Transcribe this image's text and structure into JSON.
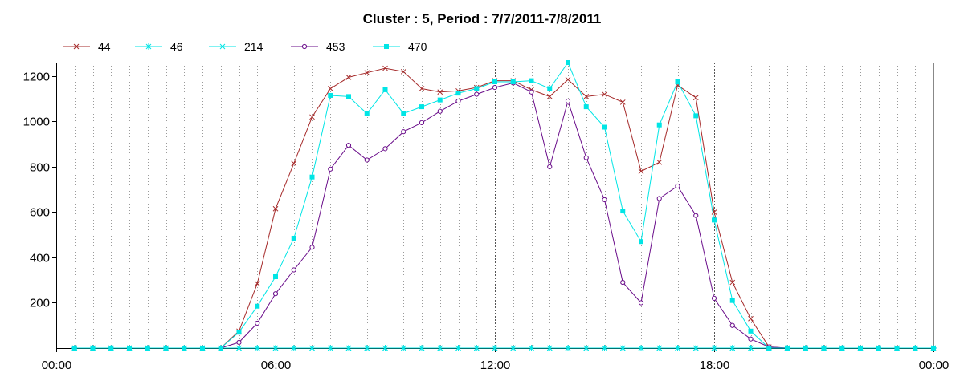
{
  "chart_data": {
    "type": "line",
    "title": "Cluster : 5, Period : 7/7/2011-7/8/2011",
    "xlabel": "",
    "ylabel": "",
    "x_unit": "hours",
    "xlim": [
      0,
      24
    ],
    "ylim": [
      0,
      1260
    ],
    "x_ticks": [
      {
        "value": 0,
        "label": "00:00"
      },
      {
        "value": 6,
        "label": "06:00"
      },
      {
        "value": 12,
        "label": "12:00"
      },
      {
        "value": 18,
        "label": "18:00"
      },
      {
        "value": 24,
        "label": "00:00"
      }
    ],
    "y_ticks": [
      {
        "value": 200,
        "label": "200"
      },
      {
        "value": 400,
        "label": "400"
      },
      {
        "value": 600,
        "label": "600"
      },
      {
        "value": 800,
        "label": "800"
      },
      {
        "value": 1000,
        "label": "1000"
      },
      {
        "value": 1200,
        "label": "1200"
      }
    ],
    "grid": {
      "vertical_minor_step": 0.5,
      "vertical_major_step": 6,
      "horizontal": false
    },
    "legend_position": "top-left",
    "series": [
      {
        "name": "44",
        "color": "#a52a2a",
        "marker": "x",
        "points": [
          [
            0.5,
            0
          ],
          [
            1,
            0
          ],
          [
            1.5,
            0
          ],
          [
            2,
            0
          ],
          [
            2.5,
            0
          ],
          [
            3,
            0
          ],
          [
            3.5,
            0
          ],
          [
            4,
            0
          ],
          [
            4.5,
            0
          ],
          [
            5,
            75
          ],
          [
            5.5,
            285
          ],
          [
            6,
            615
          ],
          [
            6.5,
            815
          ],
          [
            7,
            1020
          ],
          [
            7.5,
            1145
          ],
          [
            8,
            1195
          ],
          [
            8.5,
            1215
          ],
          [
            9,
            1235
          ],
          [
            9.5,
            1220
          ],
          [
            10,
            1145
          ],
          [
            10.5,
            1130
          ],
          [
            11,
            1135
          ],
          [
            11.5,
            1150
          ],
          [
            12,
            1180
          ],
          [
            12.5,
            1180
          ],
          [
            13,
            1140
          ],
          [
            13.5,
            1110
          ],
          [
            14,
            1185
          ],
          [
            14.5,
            1110
          ],
          [
            15,
            1120
          ],
          [
            15.5,
            1085
          ],
          [
            16,
            780
          ],
          [
            16.5,
            820
          ],
          [
            17,
            1160
          ],
          [
            17.5,
            1105
          ],
          [
            18,
            600
          ],
          [
            18.5,
            290
          ],
          [
            19,
            130
          ],
          [
            19.5,
            5
          ],
          [
            20,
            0
          ],
          [
            20.5,
            0
          ],
          [
            21,
            0
          ],
          [
            21.5,
            0
          ],
          [
            22,
            0
          ],
          [
            22.5,
            0
          ],
          [
            23,
            0
          ],
          [
            23.5,
            0
          ],
          [
            24,
            0
          ]
        ]
      },
      {
        "name": "46",
        "color": "#00e5e5",
        "marker": "star",
        "points": [
          [
            0.5,
            0
          ],
          [
            1,
            0
          ],
          [
            1.5,
            0
          ],
          [
            2,
            0
          ],
          [
            2.5,
            0
          ],
          [
            3,
            0
          ],
          [
            3.5,
            0
          ],
          [
            4,
            0
          ],
          [
            4.5,
            0
          ],
          [
            5,
            0
          ],
          [
            5.5,
            0
          ],
          [
            6,
            0
          ],
          [
            6.5,
            0
          ],
          [
            7,
            0
          ],
          [
            7.5,
            0
          ],
          [
            8,
            0
          ],
          [
            8.5,
            0
          ],
          [
            9,
            0
          ],
          [
            9.5,
            0
          ],
          [
            10,
            0
          ],
          [
            10.5,
            0
          ],
          [
            11,
            0
          ],
          [
            11.5,
            0
          ],
          [
            12,
            0
          ],
          [
            12.5,
            0
          ],
          [
            13,
            0
          ],
          [
            13.5,
            0
          ],
          [
            14,
            0
          ],
          [
            14.5,
            0
          ],
          [
            15,
            0
          ],
          [
            15.5,
            0
          ],
          [
            16,
            0
          ],
          [
            16.5,
            0
          ],
          [
            17,
            0
          ],
          [
            17.5,
            0
          ],
          [
            18,
            0
          ],
          [
            18.5,
            0
          ],
          [
            19,
            0
          ],
          [
            19.5,
            0
          ],
          [
            20,
            0
          ],
          [
            20.5,
            0
          ],
          [
            21,
            0
          ],
          [
            21.5,
            0
          ],
          [
            22,
            0
          ],
          [
            22.5,
            0
          ],
          [
            23,
            0
          ],
          [
            23.5,
            0
          ],
          [
            24,
            0
          ]
        ]
      },
      {
        "name": "214",
        "color": "#00e5e5",
        "marker": "x",
        "points": [
          [
            0.5,
            0
          ],
          [
            1,
            0
          ],
          [
            1.5,
            0
          ],
          [
            2,
            0
          ],
          [
            2.5,
            0
          ],
          [
            3,
            0
          ],
          [
            3.5,
            0
          ],
          [
            4,
            0
          ],
          [
            4.5,
            0
          ],
          [
            5,
            0
          ],
          [
            5.5,
            0
          ],
          [
            6,
            0
          ],
          [
            6.5,
            0
          ],
          [
            7,
            0
          ],
          [
            7.5,
            0
          ],
          [
            8,
            0
          ],
          [
            8.5,
            0
          ],
          [
            9,
            0
          ],
          [
            9.5,
            0
          ],
          [
            10,
            0
          ],
          [
            10.5,
            0
          ],
          [
            11,
            0
          ],
          [
            11.5,
            0
          ],
          [
            12,
            0
          ],
          [
            12.5,
            0
          ],
          [
            13,
            0
          ],
          [
            13.5,
            0
          ],
          [
            14,
            0
          ],
          [
            14.5,
            0
          ],
          [
            15,
            0
          ],
          [
            15.5,
            0
          ],
          [
            16,
            0
          ],
          [
            16.5,
            0
          ],
          [
            17,
            0
          ],
          [
            17.5,
            0
          ],
          [
            18,
            0
          ],
          [
            18.5,
            0
          ],
          [
            19,
            0
          ],
          [
            19.5,
            0
          ],
          [
            20,
            0
          ],
          [
            20.5,
            0
          ],
          [
            21,
            0
          ],
          [
            21.5,
            0
          ],
          [
            22,
            0
          ],
          [
            22.5,
            0
          ],
          [
            23,
            0
          ],
          [
            23.5,
            0
          ],
          [
            24,
            0
          ]
        ]
      },
      {
        "name": "453",
        "color": "#6a0d8a",
        "marker": "circle",
        "points": [
          [
            0.5,
            0
          ],
          [
            1,
            0
          ],
          [
            1.5,
            0
          ],
          [
            2,
            0
          ],
          [
            2.5,
            0
          ],
          [
            3,
            0
          ],
          [
            3.5,
            0
          ],
          [
            4,
            0
          ],
          [
            4.5,
            0
          ],
          [
            5,
            25
          ],
          [
            5.5,
            110
          ],
          [
            6,
            240
          ],
          [
            6.5,
            345
          ],
          [
            7,
            445
          ],
          [
            7.5,
            790
          ],
          [
            8,
            895
          ],
          [
            8.5,
            830
          ],
          [
            9,
            880
          ],
          [
            9.5,
            955
          ],
          [
            10,
            995
          ],
          [
            10.5,
            1045
          ],
          [
            11,
            1090
          ],
          [
            11.5,
            1120
          ],
          [
            12,
            1150
          ],
          [
            12.5,
            1170
          ],
          [
            13,
            1130
          ],
          [
            13.5,
            800
          ],
          [
            14,
            1090
          ],
          [
            14.5,
            840
          ],
          [
            15,
            655
          ],
          [
            15.5,
            290
          ],
          [
            16,
            200
          ],
          [
            16.5,
            660
          ],
          [
            17,
            715
          ],
          [
            17.5,
            585
          ],
          [
            18,
            220
          ],
          [
            18.5,
            100
          ],
          [
            19,
            40
          ],
          [
            19.5,
            5
          ],
          [
            20,
            0
          ],
          [
            20.5,
            0
          ],
          [
            21,
            0
          ],
          [
            21.5,
            0
          ],
          [
            22,
            0
          ],
          [
            22.5,
            0
          ],
          [
            23,
            0
          ],
          [
            23.5,
            0
          ],
          [
            24,
            0
          ]
        ]
      },
      {
        "name": "470",
        "color": "#00e5e5",
        "marker": "square",
        "points": [
          [
            0.5,
            0
          ],
          [
            1,
            0
          ],
          [
            1.5,
            0
          ],
          [
            2,
            0
          ],
          [
            2.5,
            0
          ],
          [
            3,
            0
          ],
          [
            3.5,
            0
          ],
          [
            4,
            0
          ],
          [
            4.5,
            0
          ],
          [
            5,
            70
          ],
          [
            5.5,
            185
          ],
          [
            6,
            315
          ],
          [
            6.5,
            485
          ],
          [
            7,
            755
          ],
          [
            7.5,
            1115
          ],
          [
            8,
            1110
          ],
          [
            8.5,
            1035
          ],
          [
            9,
            1140
          ],
          [
            9.5,
            1035
          ],
          [
            10,
            1065
          ],
          [
            10.5,
            1095
          ],
          [
            11,
            1125
          ],
          [
            11.5,
            1145
          ],
          [
            12,
            1175
          ],
          [
            12.5,
            1175
          ],
          [
            13,
            1180
          ],
          [
            13.5,
            1145
          ],
          [
            14,
            1265
          ],
          [
            14.5,
            1065
          ],
          [
            15,
            975
          ],
          [
            15.5,
            605
          ],
          [
            16,
            470
          ],
          [
            16.5,
            985
          ],
          [
            17,
            1175
          ],
          [
            17.5,
            1025
          ],
          [
            18,
            565
          ],
          [
            18.5,
            210
          ],
          [
            19,
            75
          ],
          [
            19.5,
            0
          ],
          [
            20,
            0
          ],
          [
            20.5,
            0
          ],
          [
            21,
            0
          ],
          [
            21.5,
            0
          ],
          [
            22,
            0
          ],
          [
            22.5,
            0
          ],
          [
            23,
            0
          ],
          [
            23.5,
            0
          ],
          [
            24,
            0
          ]
        ]
      }
    ]
  }
}
